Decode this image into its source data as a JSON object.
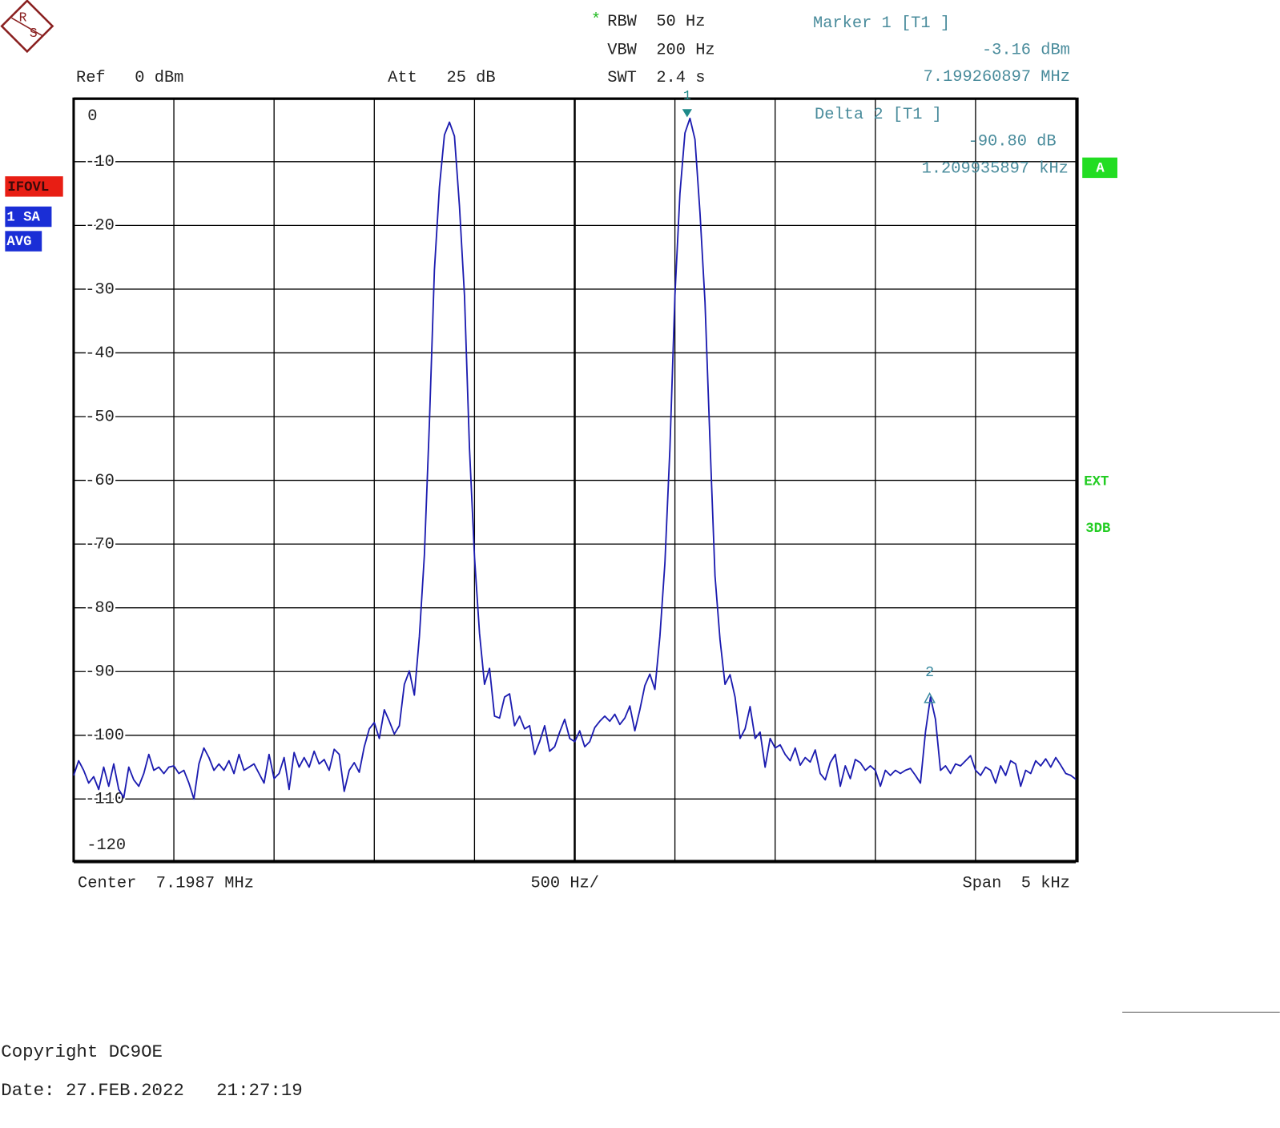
{
  "logo": [
    "R",
    "S"
  ],
  "header": {
    "star": "*",
    "rbw": "RBW  50 Hz",
    "vbw": "VBW  200 Hz",
    "swt": "SWT  2.4 s",
    "ref": "Ref   0 dBm",
    "att": "Att   25 dB"
  },
  "readout": {
    "m1_title": "Marker 1 [T1 ]",
    "m1_level": "-3.16 dBm",
    "m1_freq": "7.199260897 MHz",
    "d2_title": "Delta 2 [T1 ]",
    "d2_level": "-90.80 dB",
    "d2_freq": "1.209935897 kHz"
  },
  "status": {
    "ifovl": "IFOVL",
    "trace": "1 SA",
    "avg": "AVG",
    "a": "A",
    "ext": "EXT",
    "db3": "3DB"
  },
  "footer": {
    "center": "Center  7.1987 MHz",
    "div": "500 Hz/",
    "span": "Span  5 kHz",
    "copyright": "Copyright DC9OE",
    "date": "Date: 27.FEB.2022   21:27:19"
  },
  "chart_data": {
    "type": "line",
    "x": [
      7196200,
      7196225,
      7196250,
      7196275,
      7196300,
      7196325,
      7196350,
      7196375,
      7196400,
      7196425,
      7196450,
      7196475,
      7196500,
      7196525,
      7196550,
      7196575,
      7196600,
      7196625,
      7196650,
      7196675,
      7196700,
      7196725,
      7196750,
      7196775,
      7196800,
      7196825,
      7196850,
      7196875,
      7196900,
      7196925,
      7196950,
      7196975,
      7197000,
      7197025,
      7197050,
      7197075,
      7197100,
      7197125,
      7197150,
      7197175,
      7197200,
      7197225,
      7197250,
      7197275,
      7197300,
      7197325,
      7197350,
      7197375,
      7197400,
      7197425,
      7197450,
      7197475,
      7197500,
      7197525,
      7197550,
      7197575,
      7197600,
      7197625,
      7197650,
      7197675,
      7197700,
      7197725,
      7197750,
      7197775,
      7197800,
      7197825,
      7197850,
      7197875,
      7197900,
      7197925,
      7197950,
      7197975,
      7198000,
      7198025,
      7198050,
      7198075,
      7198100,
      7198125,
      7198150,
      7198175,
      7198200,
      7198225,
      7198250,
      7198275,
      7198300,
      7198325,
      7198350,
      7198375,
      7198400,
      7198425,
      7198450,
      7198475,
      7198500,
      7198525,
      7198550,
      7198575,
      7198600,
      7198625,
      7198650,
      7198675,
      7198700,
      7198725,
      7198750,
      7198775,
      7198800,
      7198825,
      7198850,
      7198875,
      7198900,
      7198925,
      7198950,
      7198975,
      7199000,
      7199025,
      7199050,
      7199075,
      7199100,
      7199125,
      7199150,
      7199175,
      7199200,
      7199225,
      7199250,
      7199275,
      7199300,
      7199325,
      7199350,
      7199375,
      7199400,
      7199425,
      7199450,
      7199475,
      7199500,
      7199525,
      7199550,
      7199575,
      7199600,
      7199625,
      7199650,
      7199675,
      7199700,
      7199725,
      7199750,
      7199775,
      7199800,
      7199825,
      7199850,
      7199875,
      7199900,
      7199925,
      7199950,
      7199975,
      7200000,
      7200025,
      7200050,
      7200075,
      7200100,
      7200125,
      7200150,
      7200175,
      7200200,
      7200225,
      7200250,
      7200275,
      7200300,
      7200325,
      7200350,
      7200375,
      7200400,
      7200425,
      7200450,
      7200475,
      7200500,
      7200525,
      7200550,
      7200575,
      7200600,
      7200625,
      7200650,
      7200675,
      7200700,
      7200725,
      7200750,
      7200775,
      7200800,
      7200825,
      7200850,
      7200875,
      7200900,
      7200925,
      7200950,
      7200975,
      7201000,
      7201025,
      7201050,
      7201075,
      7201100,
      7201125,
      7201150,
      7201175,
      7201200
    ],
    "series": [
      {
        "color": "#1c1cb0",
        "values": [
          -106.3,
          -104.0,
          -105.5,
          -107.5,
          -106.5,
          -108.5,
          -105.0,
          -108.0,
          -104.5,
          -108.5,
          -109.8,
          -105.0,
          -107.0,
          -108.0,
          -106.0,
          -103.0,
          -105.5,
          -105.0,
          -106.0,
          -105.0,
          -104.8,
          -106.0,
          -105.5,
          -107.5,
          -110.0,
          -104.5,
          -102.0,
          -103.5,
          -105.5,
          -104.5,
          -105.5,
          -104.0,
          -106.0,
          -103.0,
          -105.5,
          -105.0,
          -104.5,
          -106.0,
          -107.5,
          -103.0,
          -106.8,
          -106.0,
          -103.5,
          -108.5,
          -102.7,
          -105.0,
          -103.5,
          -105.0,
          -102.5,
          -104.5,
          -103.8,
          -105.5,
          -102.2,
          -103.0,
          -108.8,
          -105.5,
          -104.3,
          -105.8,
          -101.8,
          -99.0,
          -98.0,
          -100.5,
          -96.0,
          -97.8,
          -99.8,
          -98.5,
          -92.0,
          -89.9,
          -93.7,
          -84.5,
          -71.7,
          -51.0,
          -27.0,
          -14.0,
          -5.8,
          -3.8,
          -6.0,
          -17.0,
          -31.0,
          -55.0,
          -72.0,
          -84.0,
          -92.0,
          -89.5,
          -97.0,
          -97.3,
          -94.0,
          -93.5,
          -98.5,
          -97.0,
          -99.0,
          -98.5,
          -103.0,
          -101.0,
          -98.5,
          -102.5,
          -101.8,
          -99.5,
          -97.5,
          -100.5,
          -101.0,
          -99.3,
          -101.8,
          -101.0,
          -98.8,
          -97.8,
          -97.0,
          -97.8,
          -96.7,
          -98.3,
          -97.3,
          -95.4,
          -99.3,
          -96.0,
          -92.2,
          -90.4,
          -92.8,
          -84.5,
          -73.0,
          -55.0,
          -31.0,
          -15.0,
          -5.5,
          -3.2,
          -6.5,
          -18.0,
          -32.0,
          -54.0,
          -75.0,
          -85.0,
          -92.0,
          -90.5,
          -94.0,
          -100.5,
          -99.0,
          -95.5,
          -100.5,
          -99.5,
          -105.0,
          -100.5,
          -102.0,
          -101.5,
          -103.0,
          -104.0,
          -102.0,
          -104.7,
          -103.5,
          -104.2,
          -102.3,
          -106.0,
          -107.0,
          -104.3,
          -103.0,
          -108.0,
          -104.8,
          -106.8,
          -103.8,
          -104.3,
          -105.5,
          -104.8,
          -105.5,
          -108.0,
          -105.5,
          -106.3,
          -105.5,
          -106.0,
          -105.5,
          -105.2,
          -106.3,
          -107.5,
          -99.5,
          -94.0,
          -97.5,
          -105.5,
          -104.8,
          -106.0,
          -104.5,
          -104.8,
          -104.0,
          -103.2,
          -105.5,
          -106.3,
          -105.0,
          -105.5,
          -107.5,
          -104.8,
          -106.3,
          -104.0,
          -104.5,
          -108.0,
          -105.5,
          -106.0,
          -104.0,
          -104.8,
          -103.7,
          -105.0,
          -103.5,
          -104.7,
          -106.0,
          -106.3,
          -106.9
        ]
      }
    ],
    "xlim": [
      7196200,
      7201200
    ],
    "xticks": [
      7196200,
      7196700,
      7197200,
      7197700,
      7198200,
      7198700,
      7199200,
      7199700,
      7200200,
      7200700,
      7201200
    ],
    "ylim": [
      -120,
      0
    ],
    "yticks": [
      -120,
      -110,
      -100,
      -90,
      -80,
      -70,
      -60,
      -50,
      -40,
      -30,
      -20,
      -10,
      0
    ],
    "grid": true,
    "markers": [
      {
        "label": "1",
        "x": 7199260.897,
        "y": -3.16,
        "color": "#1f8a8a"
      },
      {
        "label": "2",
        "x": 7200470.833,
        "y": -93.96,
        "color": "#3a8aa0"
      }
    ]
  }
}
